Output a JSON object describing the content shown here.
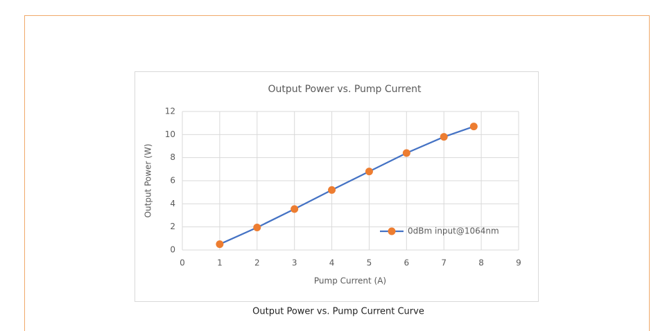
{
  "chart_data": {
    "type": "line",
    "title": "Output Power vs. Pump Current",
    "x_label": "Pump Current (A)",
    "y_label": "Output Power (W)",
    "x": [
      1,
      2,
      3,
      4,
      5,
      6,
      7,
      7.8
    ],
    "series": [
      {
        "name": "0dBm input@1064nm",
        "color": "#4472c4",
        "marker_color": "#ed7d31",
        "values": [
          0.5,
          1.95,
          3.55,
          5.2,
          6.8,
          8.4,
          9.8,
          10.7
        ]
      }
    ],
    "xlim": [
      0,
      9
    ],
    "xticks": [
      0,
      1,
      2,
      3,
      4,
      5,
      6,
      7,
      8,
      9
    ],
    "ylim": [
      0,
      12
    ],
    "yticks": [
      0,
      2,
      4,
      6,
      8,
      10,
      12
    ],
    "grid": true,
    "legend": "lower-right"
  },
  "caption": "Output Power vs. Pump Current Curve"
}
